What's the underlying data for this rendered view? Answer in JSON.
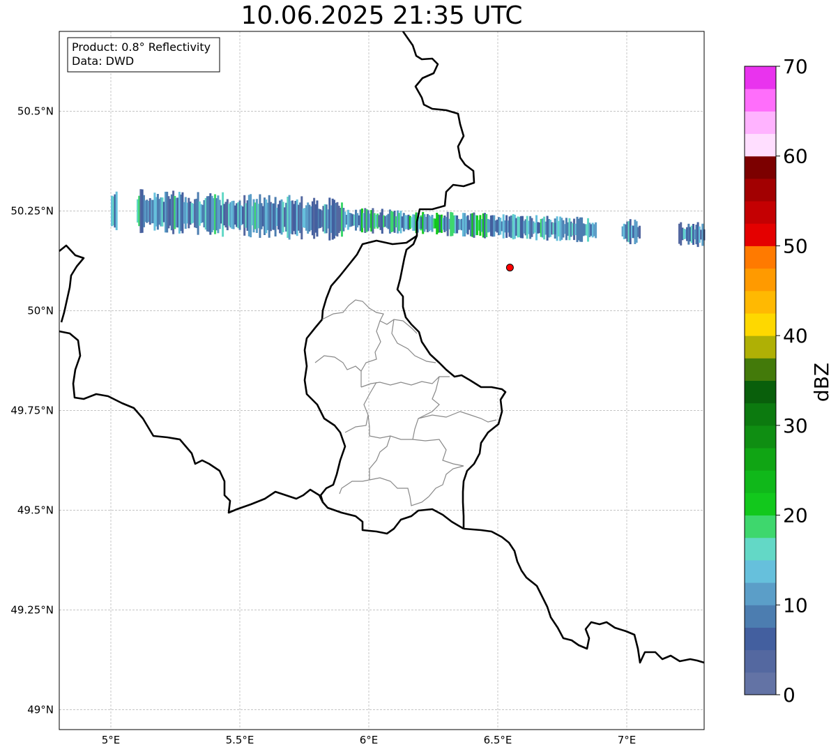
{
  "title": "10.06.2025 21:35 UTC",
  "info_box": {
    "product": "Product: 0.8° Reflectivity",
    "data": "Data: DWD"
  },
  "map": {
    "lon_range": [
      4.8,
      7.3
    ],
    "lat_range": [
      48.95,
      50.7
    ],
    "lon_ticks": [
      {
        "value": 5.0,
        "label": "5°E"
      },
      {
        "value": 5.5,
        "label": "5.5°E"
      },
      {
        "value": 6.0,
        "label": "6°E"
      },
      {
        "value": 6.5,
        "label": "6.5°E"
      },
      {
        "value": 7.0,
        "label": "7°E"
      }
    ],
    "lat_ticks": [
      {
        "value": 50.5,
        "label": "50.5°N"
      },
      {
        "value": 50.25,
        "label": "50.25°N"
      },
      {
        "value": 50.0,
        "label": "50°N"
      },
      {
        "value": 49.75,
        "label": "49.75°N"
      },
      {
        "value": 49.5,
        "label": "49.5°N"
      },
      {
        "value": 49.25,
        "label": "49.25°N"
      },
      {
        "value": 49.0,
        "label": "49°N"
      }
    ],
    "grid": true,
    "marker": {
      "lon": 6.547,
      "lat": 50.108,
      "color": "#ff0000"
    }
  },
  "colorbar": {
    "label": "dBZ",
    "range": [
      0,
      70
    ],
    "tick_labels": [
      "0",
      "10",
      "20",
      "30",
      "40",
      "50",
      "60",
      "70"
    ],
    "colors": [
      "#6373a5",
      "#5468a0",
      "#435f9f",
      "#4c7db0",
      "#5b9ec8",
      "#66c0dc",
      "#63d8c6",
      "#3ed76d",
      "#12c81c",
      "#10b81a",
      "#10a514",
      "#0f8e12",
      "#0c7a0f",
      "#095f0b",
      "#437a0a",
      "#afb005",
      "#fed800",
      "#ffb902",
      "#ff9a00",
      "#ff7a00",
      "#e40000",
      "#c40002",
      "#a20001",
      "#7c0000",
      "#ffdeff",
      "#ffb3ff",
      "#ff6efb",
      "#e933ee"
    ]
  },
  "chart_data": {
    "type": "heatmap",
    "title": "10.06.2025 21:35 UTC",
    "colorbar_label": "dBZ",
    "value_range": [
      0,
      70
    ],
    "echo_band": {
      "lat_center": 50.23,
      "lon_extent": [
        5.0,
        7.3
      ],
      "peak_dbz": 22
    }
  }
}
